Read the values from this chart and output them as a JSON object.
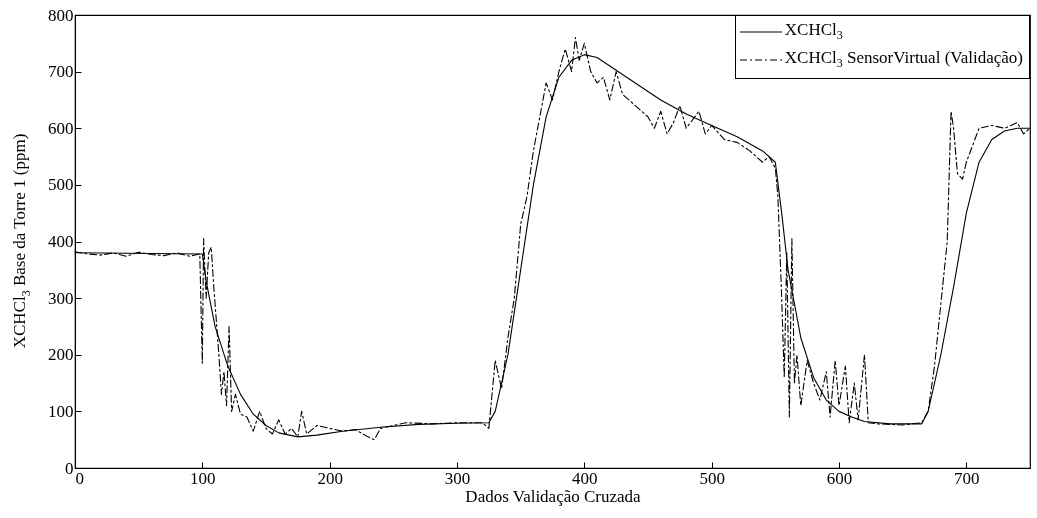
{
  "chart_data": {
    "type": "line",
    "xlabel": "Dados Validação Cruzada",
    "ylabel": "XCHCl$_{3}$ Base da Torre 1 (ppm)",
    "xlim": [
      0,
      750
    ],
    "ylim": [
      0,
      800
    ],
    "xticks": [
      0,
      100,
      200,
      300,
      400,
      500,
      600,
      700
    ],
    "yticks": [
      0,
      100,
      200,
      300,
      400,
      500,
      600,
      700,
      800
    ],
    "grid": false,
    "legend": "top right",
    "series": [
      {
        "name": "XCHCl$_{3}$",
        "color": "#000000",
        "line_style": "solid",
        "marker": "none",
        "x": [
          0,
          100,
          103,
          110,
          120,
          130,
          140,
          150,
          160,
          175,
          190,
          210,
          240,
          270,
          300,
          325,
          330,
          340,
          350,
          360,
          370,
          380,
          390,
          400,
          410,
          420,
          440,
          460,
          480,
          500,
          520,
          540,
          550,
          555,
          560,
          570,
          580,
          590,
          600,
          610,
          620,
          640,
          660,
          665,
          670,
          680,
          690,
          700,
          710,
          720,
          730,
          740,
          750
        ],
        "values": [
          380,
          378,
          330,
          250,
          180,
          130,
          95,
          75,
          62,
          55,
          58,
          65,
          72,
          77,
          79,
          80,
          100,
          200,
          350,
          500,
          620,
          690,
          720,
          730,
          725,
          710,
          680,
          650,
          625,
          605,
          585,
          560,
          540,
          450,
          350,
          230,
          160,
          120,
          100,
          90,
          82,
          78,
          78,
          78,
          100,
          200,
          320,
          450,
          540,
          580,
          595,
          600,
          600
        ]
      },
      {
        "name": "XCHCl$_{3}$ SensorVirtual (Validação)",
        "color": "#000000",
        "line_style": "dashed",
        "x": [
          0,
          10,
          20,
          30,
          40,
          50,
          60,
          70,
          80,
          90,
          98,
          100,
          101,
          103,
          105,
          107,
          109,
          111,
          113,
          115,
          117,
          119,
          121,
          123,
          126,
          130,
          135,
          140,
          145,
          150,
          155,
          160,
          165,
          170,
          175,
          178,
          182,
          190,
          200,
          210,
          220,
          230,
          235,
          240,
          250,
          260,
          280,
          300,
          320,
          325,
          330,
          335,
          340,
          345,
          350,
          355,
          360,
          365,
          370,
          375,
          380,
          385,
          390,
          393,
          396,
          400,
          405,
          410,
          415,
          420,
          425,
          430,
          440,
          450,
          455,
          460,
          465,
          470,
          475,
          480,
          490,
          495,
          500,
          510,
          520,
          530,
          540,
          545,
          550,
          552,
          555,
          557,
          559,
          561,
          563,
          565,
          567,
          570,
          575,
          580,
          585,
          590,
          593,
          597,
          600,
          605,
          608,
          612,
          615,
          620,
          623,
          630,
          650,
          665,
          670,
          675,
          680,
          685,
          688,
          690,
          693,
          697,
          700,
          705,
          710,
          720,
          730,
          740,
          745,
          750
        ],
        "values": [
          382,
          378,
          376,
          380,
          374,
          381,
          377,
          375,
          380,
          374,
          378,
          185,
          405,
          300,
          380,
          390,
          320,
          260,
          200,
          130,
          170,
          110,
          250,
          100,
          130,
          95,
          90,
          65,
          100,
          70,
          60,
          85,
          60,
          70,
          55,
          100,
          60,
          75,
          70,
          65,
          68,
          55,
          50,
          70,
          75,
          80,
          78,
          80,
          80,
          70,
          190,
          140,
          230,
          300,
          430,
          480,
          560,
          620,
          680,
          650,
          700,
          740,
          700,
          760,
          720,
          750,
          700,
          680,
          690,
          650,
          700,
          660,
          640,
          620,
          600,
          630,
          590,
          610,
          640,
          600,
          630,
          590,
          605,
          580,
          575,
          560,
          540,
          550,
          530,
          480,
          300,
          160,
          380,
          90,
          405,
          150,
          200,
          110,
          190,
          150,
          120,
          170,
          90,
          190,
          110,
          180,
          80,
          150,
          85,
          200,
          80,
          78,
          76,
          80,
          100,
          180,
          290,
          400,
          630,
          600,
          520,
          510,
          540,
          570,
          600,
          605,
          600,
          610,
          590,
          600
        ]
      }
    ]
  }
}
